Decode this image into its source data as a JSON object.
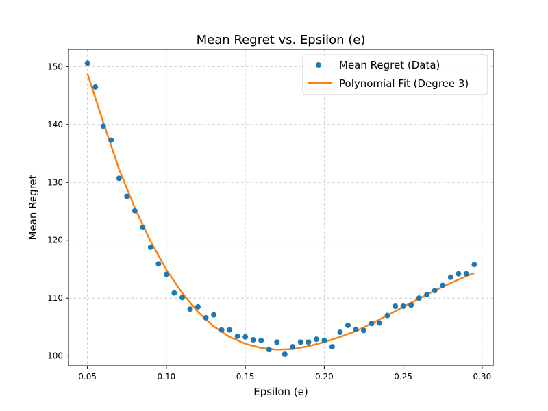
{
  "chart_data": {
    "type": "scatter",
    "title": "Mean Regret vs. Epsilon (e)",
    "xlabel": "Epsilon (e)",
    "ylabel": "Mean Regret",
    "xlim": [
      0.038,
      0.307
    ],
    "ylim": [
      98.3,
      153.0
    ],
    "xticks": [
      "0.05",
      "0.10",
      "0.15",
      "0.20",
      "0.25",
      "0.30"
    ],
    "xtick_values": [
      0.05,
      0.1,
      0.15,
      0.2,
      0.25,
      0.3
    ],
    "yticks": [
      "100",
      "110",
      "120",
      "130",
      "140",
      "150"
    ],
    "ytick_values": [
      100,
      110,
      120,
      130,
      140,
      150
    ],
    "grid": true,
    "legend_position": "top-right",
    "series": [
      {
        "name": "Mean Regret (Data)",
        "kind": "scatter",
        "color": "#1f77b4",
        "x": [
          0.05,
          0.055,
          0.06,
          0.065,
          0.07,
          0.075,
          0.08,
          0.085,
          0.09,
          0.095,
          0.1,
          0.105,
          0.11,
          0.115,
          0.12,
          0.125,
          0.13,
          0.135,
          0.14,
          0.145,
          0.15,
          0.155,
          0.16,
          0.165,
          0.17,
          0.175,
          0.18,
          0.185,
          0.19,
          0.195,
          0.2,
          0.205,
          0.21,
          0.215,
          0.22,
          0.225,
          0.23,
          0.235,
          0.24,
          0.245,
          0.25,
          0.255,
          0.26,
          0.265,
          0.27,
          0.275,
          0.28,
          0.285,
          0.29,
          0.295
        ],
        "y": [
          150.6,
          146.5,
          139.7,
          137.3,
          130.7,
          127.6,
          125.1,
          122.2,
          118.8,
          115.9,
          114.1,
          110.9,
          110.1,
          108.1,
          108.5,
          106.6,
          107.1,
          104.5,
          104.5,
          103.4,
          103.3,
          102.8,
          102.7,
          101.1,
          102.4,
          100.3,
          101.6,
          102.4,
          102.4,
          102.9,
          102.7,
          101.6,
          104.1,
          105.3,
          104.6,
          104.4,
          105.6,
          105.7,
          107.0,
          108.6,
          108.6,
          108.8,
          110.0,
          110.6,
          111.3,
          112.2,
          113.6,
          114.2,
          114.2,
          115.8
        ]
      },
      {
        "name": "Polynomial Fit (Degree 3)",
        "kind": "line",
        "color": "#ff7f0e",
        "x": [
          0.05,
          0.06,
          0.07,
          0.08,
          0.09,
          0.1,
          0.11,
          0.12,
          0.13,
          0.14,
          0.15,
          0.16,
          0.17,
          0.18,
          0.19,
          0.2,
          0.21,
          0.22,
          0.23,
          0.24,
          0.25,
          0.26,
          0.27,
          0.28,
          0.29,
          0.295
        ],
        "y": [
          148.8,
          140.4,
          132.3,
          125.6,
          119.8,
          114.9,
          110.9,
          107.6,
          105.1,
          103.3,
          102.1,
          101.4,
          101.1,
          101.2,
          101.7,
          102.4,
          103.3,
          104.3,
          105.6,
          107.0,
          108.5,
          109.9,
          111.3,
          112.6,
          113.8,
          114.3
        ]
      }
    ]
  }
}
